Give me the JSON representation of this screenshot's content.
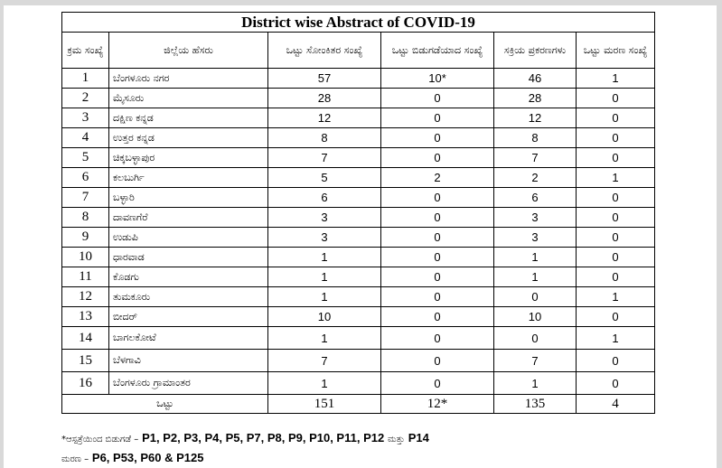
{
  "title": "District wise Abstract of COVID-19",
  "headers": {
    "sl_no": "ಕ್ರಮ ಸಂಖ್ಯೆ",
    "district": "ಜಿಲ್ಲೆಯ ಹೆಸರು",
    "total_cases": "ಒಟ್ಟು ಸೋಂಕಿತರ ಸಂಖ್ಯೆ",
    "discharged": "ಒಟ್ಟು ಬಿಡುಗಡೆಯಾದ ಸಂಖ್ಯೆ",
    "active": "ಸಕ್ರಿಯ ಪ್ರಕರಣಗಳು",
    "deaths": "ಒಟ್ಟು ಮರಣ ಸಂಖ್ಯೆ"
  },
  "rows": [
    {
      "sl": "1",
      "district": "ಬೆಂಗಳೂರು ನಗರ",
      "total": "57",
      "discharged": "10*",
      "active": "46",
      "deaths": "1"
    },
    {
      "sl": "2",
      "district": "ಮೈಸೂರು",
      "total": "28",
      "discharged": "0",
      "active": "28",
      "deaths": "0"
    },
    {
      "sl": "3",
      "district": "ದಕ್ಷಿಣ ಕನ್ನಡ",
      "total": "12",
      "discharged": "0",
      "active": "12",
      "deaths": "0"
    },
    {
      "sl": "4",
      "district": "ಉತ್ತರ ಕನ್ನಡ",
      "total": "8",
      "discharged": "0",
      "active": "8",
      "deaths": "0"
    },
    {
      "sl": "5",
      "district": "ಚಿಕ್ಕಬಳ್ಳಾಪುರ",
      "total": "7",
      "discharged": "0",
      "active": "7",
      "deaths": "0"
    },
    {
      "sl": "6",
      "district": "ಕಲಬುರ್ಗಿ",
      "total": "5",
      "discharged": "2",
      "active": "2",
      "deaths": "1"
    },
    {
      "sl": "7",
      "district": "ಬಳ್ಳಾರಿ",
      "total": "6",
      "discharged": "0",
      "active": "6",
      "deaths": "0"
    },
    {
      "sl": "8",
      "district": "ದಾವಣಗೆರೆ",
      "total": "3",
      "discharged": "0",
      "active": "3",
      "deaths": "0"
    },
    {
      "sl": "9",
      "district": "ಉಡುಪಿ",
      "total": "3",
      "discharged": "0",
      "active": "3",
      "deaths": "0"
    },
    {
      "sl": "10",
      "district": "ಧಾರವಾಡ",
      "total": "1",
      "discharged": "0",
      "active": "1",
      "deaths": "0"
    },
    {
      "sl": "11",
      "district": "ಕೊಡಗು",
      "total": "1",
      "discharged": "0",
      "active": "1",
      "deaths": "0"
    },
    {
      "sl": "12",
      "district": "ತುಮಕೂರು",
      "total": "1",
      "discharged": "0",
      "active": "0",
      "deaths": "1"
    },
    {
      "sl": "13",
      "district": "ಬೀದರ್",
      "total": "10",
      "discharged": "0",
      "active": "10",
      "deaths": "0"
    },
    {
      "sl": "14",
      "district": "ಬಾಗಲಕೋಟೆ",
      "total": "1",
      "discharged": "0",
      "active": "0",
      "deaths": "1"
    },
    {
      "sl": "15",
      "district": "ಬೆಳಗಾವಿ",
      "total": "7",
      "discharged": "0",
      "active": "7",
      "deaths": "0"
    },
    {
      "sl": "16",
      "district": "ಬೆಂಗಳೂರು ಗ್ರಾಮಾಂತರ",
      "total": "1",
      "discharged": "0",
      "active": "1",
      "deaths": "0"
    }
  ],
  "totals": {
    "label": "ಒಟ್ಟು",
    "total": "151",
    "discharged": "12*",
    "active": "135",
    "deaths": "4"
  },
  "notes": {
    "discharged_prefix": "*ಆಸ್ಪತ್ರೆಯಿಂದ ಬಿಡುಗಡೆ –",
    "discharged_codes": "P1, P2, P3, P4, P5, P7, P8, P9, P10, P11, P12",
    "discharged_and": "ಮತ್ತು",
    "discharged_last": "P14",
    "death_prefix": "ಮರಣ –",
    "death_codes": "P6, P53, P60 & P125"
  }
}
